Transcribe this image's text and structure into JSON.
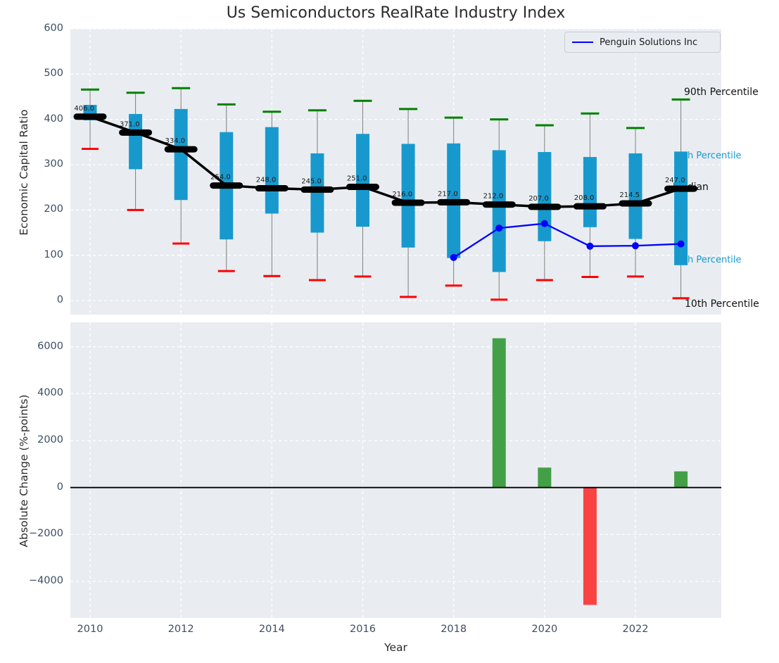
{
  "title": "Us Semiconductors RealRate Industry Index",
  "legend": {
    "label": "Penguin Solutions Inc"
  },
  "annotations": {
    "p90": "90th Percentile",
    "p75": "h Percentile",
    "median": "Median",
    "p25": "h Percentile",
    "p10": "10th Percentile"
  },
  "colors": {
    "box_fill": "#1899ce",
    "whisker": "#7f7f7f",
    "cap_top_green": "#008000",
    "cap_bottom_red": "#ff0000",
    "median_black": "#000000",
    "penguin_blue": "#0000ff",
    "bar_positive_green": "#43a047",
    "bar_negative_red": "#f94343",
    "axes_background": "#e9edf1",
    "grid_white": "#ffffff",
    "tick_text": "#3d4e63",
    "annotation_cyan": "#1899ce"
  },
  "chart_data": [
    {
      "type": "boxplot",
      "title": "Us Semiconductors RealRate Industry Index",
      "ylabel": "Economic Capital Ratio",
      "ylim": [
        -32,
        600
      ],
      "yticks": [
        0,
        100,
        200,
        300,
        400,
        500,
        600
      ],
      "xgrid_years": [
        2010,
        2012,
        2014,
        2016,
        2018,
        2020,
        2022
      ],
      "grid": "on",
      "legend_position": "upper right",
      "years": [
        2010,
        2011,
        2012,
        2013,
        2014,
        2015,
        2016,
        2017,
        2018,
        2019,
        2020,
        2021,
        2022,
        2023
      ],
      "p90": [
        466,
        459,
        469,
        433,
        417,
        420,
        441,
        423,
        404,
        400,
        387,
        413,
        381,
        444
      ],
      "q3": [
        432,
        412,
        423,
        372,
        383,
        325,
        368,
        346,
        347,
        332,
        328,
        317,
        325,
        329
      ],
      "median": [
        406,
        371,
        334,
        254,
        248,
        245,
        251,
        216,
        217,
        212,
        207,
        208,
        214.5,
        247
      ],
      "q1": [
        398,
        290,
        222,
        135,
        192,
        150,
        163,
        117,
        94,
        63,
        131,
        162,
        136,
        78
      ],
      "p10": [
        335,
        200,
        126,
        65,
        54,
        45,
        53,
        8,
        33,
        2,
        45,
        52,
        53,
        5
      ],
      "median_labels": [
        "406.0",
        "371.0",
        "334.0",
        "254.0",
        "248.0",
        "245.0",
        "251.0",
        "216.0",
        "217.0",
        "212.0",
        "207.0",
        "208.0",
        "214.5",
        "247.0"
      ],
      "series": [
        {
          "name": "Penguin Solutions Inc",
          "x": [
            2018,
            2019,
            2020,
            2021,
            2022,
            2023
          ],
          "y": [
            95,
            160,
            170,
            120,
            121,
            125
          ]
        }
      ]
    },
    {
      "type": "bar",
      "ylabel": "Absolute Change (%-points)",
      "xlabel": "Year",
      "ylim": [
        -5560,
        7040
      ],
      "yticks": [
        {
          "v": -4000,
          "label": "−4000"
        },
        {
          "v": -2000,
          "label": "−2000"
        },
        {
          "v": 0,
          "label": "0"
        },
        {
          "v": 2000,
          "label": "2000"
        },
        {
          "v": 4000,
          "label": "4000"
        },
        {
          "v": 6000,
          "label": "6000"
        }
      ],
      "xticks": [
        2010,
        2012,
        2014,
        2016,
        2018,
        2020,
        2022
      ],
      "grid": "on",
      "categories": [
        2010,
        2011,
        2012,
        2013,
        2014,
        2015,
        2016,
        2017,
        2018,
        2019,
        2020,
        2021,
        2022,
        2023
      ],
      "values": [
        0,
        0,
        0,
        0,
        0,
        0,
        0,
        0,
        0,
        6360,
        850,
        -5000,
        0,
        690
      ]
    }
  ]
}
